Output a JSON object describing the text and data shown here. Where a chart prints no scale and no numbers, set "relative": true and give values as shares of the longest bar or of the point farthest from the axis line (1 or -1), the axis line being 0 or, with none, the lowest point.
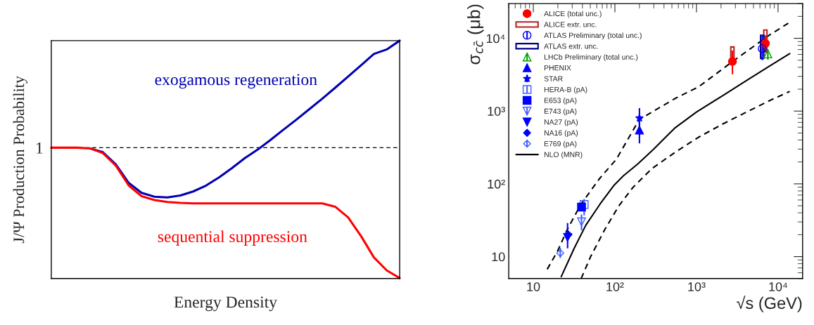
{
  "chart_data": [
    {
      "type": "line",
      "relative": true,
      "xlabel": "Energy Density",
      "ylabel": "J/Ψ Production Probability",
      "grid": false,
      "legend": false,
      "categories": [
        null,
        null,
        null,
        null,
        null,
        null,
        null,
        null,
        null,
        null,
        null,
        null,
        null,
        null,
        null,
        null,
        null,
        null,
        null,
        null,
        null,
        null,
        null,
        null,
        null,
        null,
        null,
        null
      ],
      "series": [
        {
          "name": "exogamous regeneration",
          "color": "#0000b4",
          "values": [
            null,
            null,
            null,
            0.547,
            0.531,
            0.48,
            0.402,
            0.36,
            0.344,
            0.341,
            0.349,
            0.366,
            0.391,
            0.425,
            0.464,
            0.506,
            0.542,
            0.583,
            0.626,
            0.668,
            0.712,
            0.756,
            0.802,
            0.849,
            0.896,
            0.944,
            0.963,
            1.0
          ]
        },
        {
          "name": "sequential suppression",
          "color": "#ff0000",
          "values": [
            0.55,
            0.55,
            0.55,
            0.547,
            0.527,
            0.475,
            0.391,
            0.346,
            0.33,
            0.322,
            0.318,
            0.316,
            0.316,
            0.316,
            0.316,
            0.316,
            0.316,
            0.316,
            0.316,
            0.316,
            0.316,
            0.316,
            0.302,
            0.257,
            0.179,
            0.089,
            0.034,
            0.002
          ]
        }
      ],
      "ref_lines": [
        {
          "axis": "y",
          "value": 0.55,
          "label": "1",
          "color": "#000000",
          "line_style": "dashed"
        }
      ]
    },
    {
      "type": "scatter",
      "xlabel": "√s (GeV)",
      "ylabel": "σ$_{cc̄}$ (μb)",
      "log": "xy",
      "grid": false,
      "legend": "top left",
      "xlim": [
        5,
        20000
      ],
      "xticks": [
        10,
        {
          "value": 100,
          "label": "10²"
        },
        {
          "value": 1000,
          "label": "10³"
        },
        {
          "value": 10000,
          "label": "10⁴"
        }
      ],
      "ylim": [
        5,
        30000
      ],
      "yticks": [
        10,
        {
          "value": 100,
          "label": "10²"
        },
        {
          "value": 1000,
          "label": "10³"
        },
        {
          "value": 10000,
          "label": "10⁴"
        }
      ],
      "series": [
        {
          "name": "ALICE (total unc.)",
          "color": "#ff0000",
          "marker": "circle",
          "x": [
            2760,
            7000
          ],
          "values": [
            4800,
            8500
          ],
          "errors": [
            [
              3200,
              6800
            ],
            [
              6500,
              11000
            ]
          ]
        },
        {
          "name": "ALICE extr. unc.",
          "type": "bar",
          "color": "#b22222",
          "x": [
            2760,
            7000
          ],
          "base": [
            4800,
            6500
          ],
          "values": [
            2800,
            6500
          ]
        },
        {
          "name": "ATLAS Preliminary (total unc.)",
          "color": "#0000ff",
          "marker": "circle-open",
          "x": [
            6400
          ],
          "values": [
            7200
          ],
          "errors": [
            [
              5000,
              11000
            ]
          ]
        },
        {
          "name": "ATLAS extr. unc.",
          "type": "bar",
          "color": "#00008b",
          "x": [
            6400
          ],
          "base": [
            5300
          ],
          "values": [
            5700
          ]
        },
        {
          "name": "LHCb Preliminary (total unc.)",
          "color": "#00a000",
          "marker": "triangle-open",
          "x": [
            7500
          ],
          "values": [
            6100
          ],
          "errors": [
            [
              5100,
              7100
            ]
          ]
        },
        {
          "name": "PHENIX",
          "color": "#0000ff",
          "marker": "triangle",
          "x": [
            200
          ],
          "values": [
            550
          ],
          "errors": [
            [
              360,
              740
            ]
          ]
        },
        {
          "name": "STAR",
          "color": "#0000ff",
          "marker": "star",
          "x": [
            200
          ],
          "values": [
            800
          ],
          "errors": [
            [
              550,
              1100
            ]
          ]
        },
        {
          "name": "HERA-B (pA)",
          "color": "#4060ff",
          "marker": "square-open",
          "x": [
            42
          ],
          "values": [
            52
          ],
          "errors": [
            [
              37,
              62
            ]
          ]
        },
        {
          "name": "E653 (pA)",
          "color": "#0000ff",
          "marker": "square",
          "x": [
            39
          ],
          "values": [
            48
          ]
        },
        {
          "name": "E743 (pA)",
          "color": "#4060ff",
          "marker": "triangle-down-open",
          "x": [
            39
          ],
          "values": [
            30
          ],
          "errors": [
            [
              23,
              38
            ]
          ]
        },
        {
          "name": "NA27 (pA)",
          "color": "#0000ff",
          "marker": "triangle-down",
          "x": [
            26.3
          ],
          "values": [
            18.4
          ],
          "errors": [
            [
              13,
              29
            ]
          ]
        },
        {
          "name": "NA16 (pA)",
          "color": "#0000ff",
          "marker": "diamond",
          "x": [
            27
          ],
          "values": [
            20
          ]
        },
        {
          "name": "E769 (pA)",
          "color": "#4060ff",
          "marker": "diamond-open",
          "x": [
            21.4
          ],
          "values": [
            11.2
          ],
          "errors": [
            [
              9.6,
              13.2
            ]
          ]
        },
        {
          "name": "NLO (MNR)",
          "type": "line",
          "color": "#000000",
          "line_style": "solid",
          "x": [
            22,
            31.7,
            44,
            66,
            98,
            127,
            190,
            291,
            547,
            1000,
            2060,
            3990,
            7740,
            13900
          ],
          "values": [
            5.3,
            13,
            27,
            53,
            96,
            129,
            187,
            291,
            589,
            968,
            1610,
            2570,
            4100,
            6170
          ]
        },
        {
          "type": "line",
          "color": "#000000",
          "line_style": "dashed",
          "x": [
            14.8,
            19.9,
            26,
            38.6,
            65.6,
            104,
            199,
            547,
            1060,
            2770,
            7740,
            13900
          ],
          "values": [
            6.7,
            12,
            23.4,
            53,
            120,
            217,
            764,
            1490,
            2150,
            4800,
            10970,
            16600
          ]
        },
        {
          "type": "line",
          "color": "#000000",
          "line_style": "dashed",
          "x": [
            38.6,
            50.4,
            75,
            111,
            166,
            282,
            547,
            1060,
            2060,
            3990,
            7740,
            13900
          ],
          "values": [
            5.0,
            10,
            23.4,
            49.2,
            89,
            161,
            271,
            437,
            657,
            953,
            1380,
            1860
          ]
        }
      ]
    }
  ]
}
